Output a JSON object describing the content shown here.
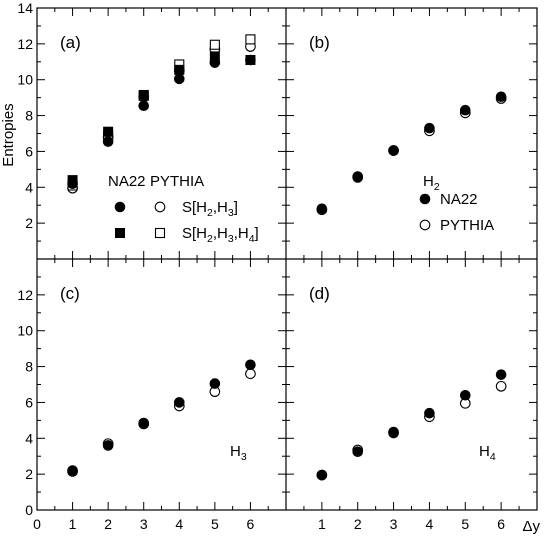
{
  "chart_data": {
    "type": "scatter",
    "ylabel": "Entropies",
    "xlabel": "Δy",
    "xlim": [
      0,
      7
    ],
    "ylim": [
      0,
      14
    ],
    "x_ticks": [
      "0",
      "1",
      "2",
      "3",
      "4",
      "5",
      "6"
    ],
    "y_ticks": [
      "0",
      "2",
      "4",
      "6",
      "8",
      "10",
      "12",
      "14"
    ],
    "panels": [
      {
        "label": "(a)",
        "legend": {
          "col_headers": [
            "NA22",
            "PYTHIA"
          ],
          "rows": [
            {
              "label": "S[H",
              "sub1": "2",
              "mid1": ",H",
              "sub2": "3",
              "mid2": "",
              "sub3": "",
              "end": "]"
            },
            {
              "label": "S[H",
              "sub1": "2",
              "mid1": ",H",
              "sub2": "3",
              "mid2": ",H",
              "sub3": "4",
              "end": "]"
            }
          ]
        },
        "series": [
          {
            "name": "S[H2,H3] NA22",
            "marker": "filled-circle",
            "x": [
              1,
              2,
              3,
              4,
              5,
              6
            ],
            "y": [
              4.2,
              6.55,
              8.55,
              10.05,
              10.95,
              11.1
            ]
          },
          {
            "name": "S[H2,H3] PYTHIA",
            "marker": "open-circle",
            "x": [
              1,
              2,
              3,
              4,
              5,
              6
            ],
            "y": [
              3.95,
              6.8,
              9.05,
              10.5,
              11.7,
              11.85
            ]
          },
          {
            "name": "S[H2,H3,H4] NA22",
            "marker": "filled-square",
            "x": [
              1,
              2,
              3,
              4,
              5,
              6
            ],
            "y": [
              4.4,
              7.1,
              9.15,
              10.55,
              11.3,
              11.1
            ]
          },
          {
            "name": "S[H2,H3,H4] PYTHIA",
            "marker": "open-square",
            "x": [
              1,
              2,
              3,
              4,
              5,
              6
            ],
            "y": [
              4.1,
              6.9,
              9.1,
              10.85,
              11.95,
              12.25
            ]
          }
        ]
      },
      {
        "label": "(b)",
        "tag": {
          "main": "H",
          "sub": "2"
        },
        "legend_labels": [
          "NA22",
          "PYTHIA"
        ],
        "series": [
          {
            "name": "NA22",
            "marker": "filled-circle",
            "x": [
              1,
              2,
              3,
              4,
              5,
              6
            ],
            "y": [
              2.8,
              4.6,
              6.05,
              7.3,
              8.3,
              9.05
            ]
          },
          {
            "name": "PYTHIA",
            "marker": "open-circle",
            "x": [
              1,
              2,
              3,
              4,
              5,
              6
            ],
            "y": [
              2.75,
              4.55,
              6.05,
              7.15,
              8.15,
              8.95
            ]
          }
        ]
      },
      {
        "label": "(c)",
        "tag": {
          "main": "H",
          "sub": "3"
        },
        "series": [
          {
            "name": "NA22",
            "marker": "filled-circle",
            "x": [
              1,
              2,
              3,
              4,
              5,
              6
            ],
            "y": [
              2.2,
              3.6,
              4.85,
              6.0,
              7.05,
              8.1
            ]
          },
          {
            "name": "PYTHIA",
            "marker": "open-circle",
            "x": [
              1,
              2,
              3,
              4,
              5,
              6
            ],
            "y": [
              2.15,
              3.7,
              4.8,
              5.8,
              6.6,
              7.6
            ]
          }
        ]
      },
      {
        "label": "(d)",
        "tag": {
          "main": "H",
          "sub": "4"
        },
        "series": [
          {
            "name": "NA22",
            "marker": "filled-circle",
            "x": [
              1,
              2,
              3,
              4,
              5,
              6
            ],
            "y": [
              1.95,
              3.25,
              4.35,
              5.4,
              6.4,
              7.55
            ]
          },
          {
            "name": "PYTHIA",
            "marker": "open-circle",
            "x": [
              1,
              2,
              3,
              4,
              5,
              6
            ],
            "y": [
              1.95,
              3.35,
              4.3,
              5.2,
              5.95,
              6.9
            ]
          }
        ]
      }
    ]
  }
}
